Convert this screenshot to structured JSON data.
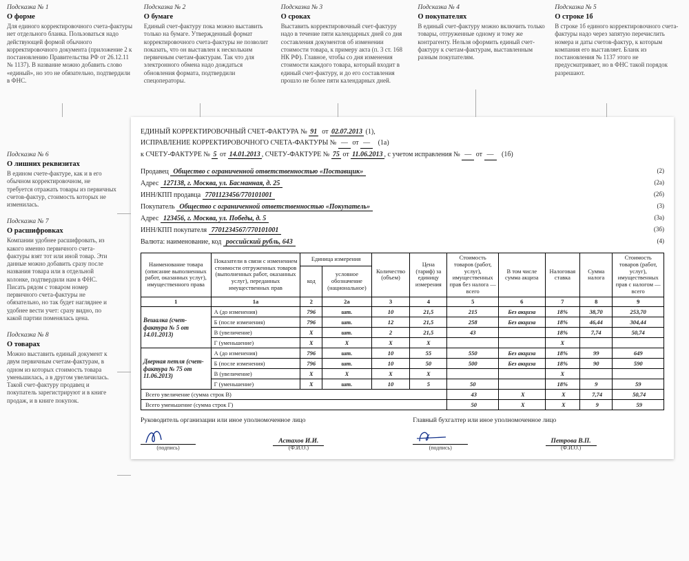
{
  "hints": {
    "top": [
      {
        "n": "Подсказка № 1",
        "t": "О форме",
        "b": "Для единого корректировочного счета-фактуры нет отдельного бланка. Пользоваться надо действующей формой обычного корректировочного документа (приложение 2 к постановлению Правительства РФ от 26.12.11 № 1137). В название можно добавить слово «единый», но это не обязательно, подтвердили в ФНС."
      },
      {
        "n": "Подсказка № 2",
        "t": "О бумаге",
        "b": "Единый счет-фактуру пока можно выставить только на бумаге. Утвержденный формат корректировочного счета-фактуры не позволит показать, что он выставлен к нескольким первичным счетам-фактурам. Так что для электронного обмена надо дождаться обновления формата, подтвердили спецоператоры."
      },
      {
        "n": "Подсказка № 3",
        "t": "О сроках",
        "b": "Выставить корректировочный счет-фактуру надо в течение пяти календарных дней со дня составления документов об изменении стоимости товара, к примеру акта (п. 3 ст. 168 НК РФ). Главное, чтобы со дня изменения стоимости каждого товара, который входит в единый счет-фактуру, и до его составления прошло не более пяти календарных дней."
      },
      {
        "n": "Подсказка № 4",
        "t": "О покупателях",
        "b": "В единый счет-фактуру можно включить только товары, отгруженные одному и тому же контрагенту. Нельзя оформить единый счет-фактуру к счетам-фактурам, выставленным разным покупателям."
      },
      {
        "n": "Подсказка № 5",
        "t": "О строке 1б",
        "b": "В строке 1б единого корректировочного счета-фактуры надо через запятую перечислить номера и даты счетов-фактур, к которым компания его выставляет. Бланк из постановления № 1137 этого не предусматривает, но в ФНС такой порядок разрешают."
      }
    ],
    "left": [
      {
        "n": "Подсказка № 6",
        "t": "О лишних реквизитах",
        "b": "В едином счете-фактуре, как и в его обычном корректировочном, не требуется отражать товары из первичных счетов-фактур, стоимость которых не изменилась."
      },
      {
        "n": "Подсказка № 7",
        "t": "О расшифровках",
        "b": "Компании удобнее расшифровать, из какого именно первичного счета-фактуры взят тот или иной товар. Эти данные можно добавить сразу после названия товара или в отдельной колонке, подтвердили нам в ФНС. Писать рядом с товаром номер первичного счета-фактуры не обязательно, но так будет нагляднее и удобнее вести учет: сразу видно, по какой партии поменялась цена."
      },
      {
        "n": "Подсказка № 8",
        "t": "О товарах",
        "b": "Можно выставить единый документ к двум первичным счетам-фактурам, в одном из которых стоимость товара уменьшилась, а в другом увеличилась. Такой счет-фактуру продавец и покупатель зарегистрируют и в книге продаж, и в книге покупок."
      }
    ]
  },
  "doc": {
    "title_a": "ЕДИНЫЙ КОРРЕКТИРОВОЧНЫЙ СЧЕТ-ФАКТУРА №",
    "num": "91",
    "date": "02.07.2013",
    "title_b": "ИСПРАВЛЕНИЕ КОРРЕКТИРОВОЧНОГО СЧЕТА-ФАКТУРЫ №",
    "ref_prefix": "к СЧЕТУ-ФАКТУРЕ №",
    "ref1_num": "5",
    "ref1_date": "14.01.2013",
    "ref_prefix2": "СЧЕТУ-ФАКТУРЕ №",
    "ref2_num": "75",
    "ref2_date": "11.06.2013",
    "ref_tail": ", с учетом исправления №",
    "m1": "(1)",
    "m1a": "(1а)",
    "m1b": "(1б)",
    "seller_lbl": "Продавец",
    "seller": "Общество с ограниченной ответственностью «Поставщик»",
    "m2": "(2)",
    "seller_addr_lbl": "Адрес",
    "seller_addr": "127138, г. Москва, ул. Басманная, д. 25",
    "m2a": "(2а)",
    "seller_inn_lbl": "ИНН/КПП продавца",
    "seller_inn": "7701123456/770101001",
    "m2b": "(2б)",
    "buyer_lbl": "Покупатель",
    "buyer": "Общество с ограниченной ответственностью «Покупатель»",
    "m3": "(3)",
    "buyer_addr_lbl": "Адрес",
    "buyer_addr": "123456, г. Москва, ул. Победы, д. 5",
    "m3a": "(3а)",
    "buyer_inn_lbl": "ИНН/КПП покупателя",
    "buyer_inn": "7701234567/770101001",
    "m3b": "(3б)",
    "currency_lbl": "Валюта: наименование, код",
    "currency": "российский рубль, 643",
    "m4": "(4)"
  },
  "table": {
    "headers": {
      "c1": "Наименование товара (описание выполненных работ, оказанных услуг), имущественного права",
      "c1a": "Показатели в связи с изменением стоимости отгруженных товаров (выполненных работ, оказанных услуг), переданных имущественных прав",
      "c_unit": "Единица измерения",
      "c2": "код",
      "c2a": "условное обозначение (национальное)",
      "c3": "Количество (объем)",
      "c4": "Цена (тариф) за единицу измерения",
      "c5": "Стоимость товаров (работ, услуг), имущественных прав без налога — всего",
      "c6": "В том числе сумма акциза",
      "c7": "Налоговая ставка",
      "c8": "Сумма налога",
      "c9": "Стоимость товаров (работ, услуг), имущественных прав с налогом — всего"
    },
    "numrow": [
      "1",
      "1а",
      "2",
      "2а",
      "3",
      "4",
      "5",
      "6",
      "7",
      "8",
      "9"
    ],
    "groups": [
      {
        "name": "Вешалка (счет-фактура № 5 от 14.01.2013)",
        "rows": [
          {
            "ind": "А (до изменения)",
            "v": [
              "796",
              "шт.",
              "10",
              "21,5",
              "215",
              "Без акциза",
              "18%",
              "38,70",
              "253,70"
            ]
          },
          {
            "ind": "Б (после изменения)",
            "v": [
              "796",
              "шт.",
              "12",
              "21,5",
              "258",
              "Без акциза",
              "18%",
              "46,44",
              "304,44"
            ]
          },
          {
            "ind": "В (увеличение)",
            "v": [
              "X",
              "шт.",
              "2",
              "21,5",
              "43",
              "",
              "18%",
              "7,74",
              "50,74"
            ]
          },
          {
            "ind": "Г (уменьшение)",
            "v": [
              "X",
              "X",
              "X",
              "X",
              "",
              "",
              "X",
              "",
              ""
            ]
          }
        ]
      },
      {
        "name": "Дверная петля (счет-фактура № 75 от 11.06.2013)",
        "rows": [
          {
            "ind": "А (до изменения)",
            "v": [
              "796",
              "шт.",
              "10",
              "55",
              "550",
              "Без акциза",
              "18%",
              "99",
              "649"
            ]
          },
          {
            "ind": "Б (после изменения)",
            "v": [
              "796",
              "шт.",
              "10",
              "50",
              "500",
              "Без акциза",
              "18%",
              "90",
              "590"
            ]
          },
          {
            "ind": "В (увеличение)",
            "v": [
              "X",
              "X",
              "X",
              "X",
              "",
              "",
              "X",
              "",
              ""
            ]
          },
          {
            "ind": "Г (уменьшение)",
            "v": [
              "X",
              "шт.",
              "10",
              "5",
              "50",
              "",
              "18%",
              "9",
              "59"
            ]
          }
        ]
      }
    ],
    "totals": [
      {
        "label": "Всего увеличение (сумма строк В)",
        "v": [
          "43",
          "X",
          "X",
          "7,74",
          "50,74"
        ]
      },
      {
        "label": "Всего уменьшение (сумма строк Г)",
        "v": [
          "50",
          "X",
          "X",
          "9",
          "59"
        ]
      }
    ]
  },
  "sigs": {
    "left_title": "Руководитель организации или иное уполномоченное лицо",
    "right_title": "Главный бухгалтер или иное уполномоченное лицо",
    "cap_sign": "(подпись)",
    "cap_name": "(Ф.И.О.)",
    "left_name": "Астахов И.И.",
    "right_name": "Петрова В.П."
  }
}
